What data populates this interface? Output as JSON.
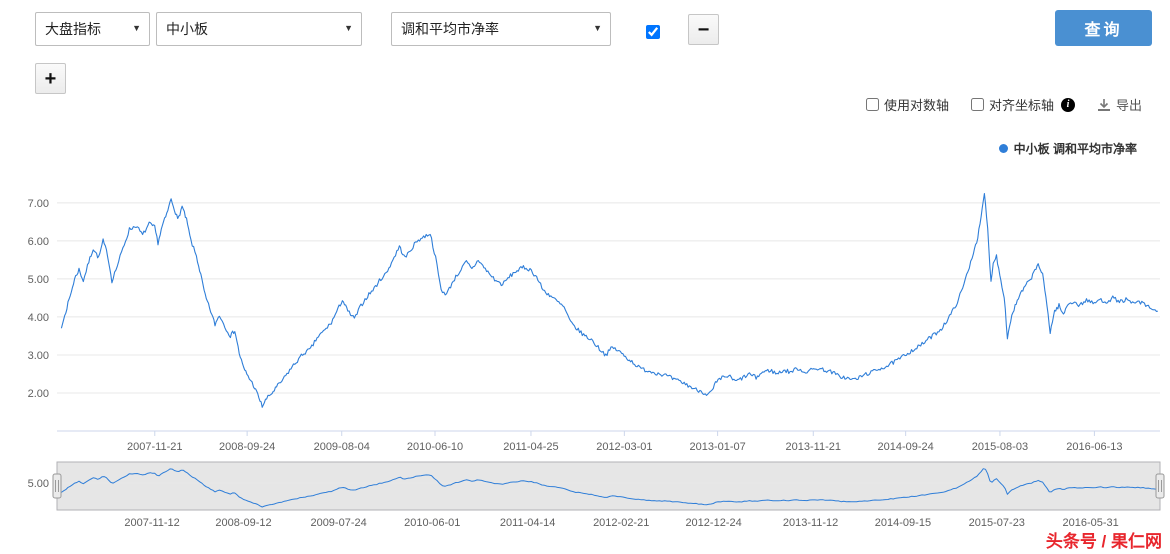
{
  "toolbar": {
    "market_select": {
      "value": "大盘指标"
    },
    "index_select": {
      "value": "中小板"
    },
    "metric_select": {
      "value": "调和平均市净率"
    },
    "series_checkbox_checked": true,
    "remove_label": "−",
    "add_label": "+",
    "query_label": "查询"
  },
  "options": {
    "log_axis_label": "使用对数轴",
    "align_axes_label": "对齐坐标轴",
    "info_glyph": "i",
    "export_label": "导出"
  },
  "legend": {
    "label": "中小板 调和平均市净率"
  },
  "watermark": "头条号 / 果仁网",
  "colors": {
    "series": "#2f7ed8",
    "accent": "#4a90d2",
    "watermark": "#e8262d",
    "axis_line": "#ccd6eb",
    "grid": "#e8e8e8",
    "tick_text": "#606060"
  },
  "chart_data": {
    "type": "line",
    "title": "",
    "legend_position": "top-right",
    "grid": true,
    "series": [
      {
        "name": "中小板 调和平均市净率",
        "color": "#2f7ed8",
        "points_year_value": [
          [
            2007.04,
            3.7
          ],
          [
            2007.08,
            4.15
          ],
          [
            2007.12,
            4.55
          ],
          [
            2007.16,
            5.0
          ],
          [
            2007.2,
            5.25
          ],
          [
            2007.24,
            4.95
          ],
          [
            2007.29,
            5.45
          ],
          [
            2007.33,
            5.8
          ],
          [
            2007.38,
            5.55
          ],
          [
            2007.42,
            6.0
          ],
          [
            2007.46,
            5.65
          ],
          [
            2007.5,
            4.95
          ],
          [
            2007.55,
            5.35
          ],
          [
            2007.6,
            5.8
          ],
          [
            2007.66,
            6.3
          ],
          [
            2007.72,
            6.4
          ],
          [
            2007.78,
            6.15
          ],
          [
            2007.84,
            6.45
          ],
          [
            2007.89,
            6.35
          ],
          [
            2007.92,
            5.95
          ],
          [
            2007.96,
            6.4
          ],
          [
            2008.0,
            6.7
          ],
          [
            2008.04,
            7.1
          ],
          [
            2008.07,
            6.85
          ],
          [
            2008.1,
            6.55
          ],
          [
            2008.14,
            6.9
          ],
          [
            2008.18,
            6.55
          ],
          [
            2008.22,
            6.0
          ],
          [
            2008.27,
            5.6
          ],
          [
            2008.31,
            5.1
          ],
          [
            2008.35,
            4.55
          ],
          [
            2008.4,
            4.15
          ],
          [
            2008.44,
            3.8
          ],
          [
            2008.48,
            4.05
          ],
          [
            2008.53,
            3.75
          ],
          [
            2008.58,
            3.5
          ],
          [
            2008.62,
            3.65
          ],
          [
            2008.66,
            3.05
          ],
          [
            2008.7,
            2.65
          ],
          [
            2008.74,
            2.45
          ],
          [
            2008.79,
            2.2
          ],
          [
            2008.83,
            1.95
          ],
          [
            2008.87,
            1.65
          ],
          [
            2008.91,
            1.85
          ],
          [
            2008.96,
            2.0
          ],
          [
            2009.0,
            2.15
          ],
          [
            2009.06,
            2.35
          ],
          [
            2009.12,
            2.6
          ],
          [
            2009.19,
            2.85
          ],
          [
            2009.25,
            3.05
          ],
          [
            2009.31,
            3.15
          ],
          [
            2009.37,
            3.45
          ],
          [
            2009.44,
            3.65
          ],
          [
            2009.5,
            3.85
          ],
          [
            2009.56,
            4.2
          ],
          [
            2009.6,
            4.45
          ],
          [
            2009.65,
            4.15
          ],
          [
            2009.71,
            3.95
          ],
          [
            2009.77,
            4.3
          ],
          [
            2009.83,
            4.55
          ],
          [
            2009.89,
            4.75
          ],
          [
            2009.95,
            5.0
          ],
          [
            2010.0,
            5.15
          ],
          [
            2010.06,
            5.5
          ],
          [
            2010.12,
            5.85
          ],
          [
            2010.17,
            5.55
          ],
          [
            2010.22,
            5.75
          ],
          [
            2010.28,
            6.0
          ],
          [
            2010.34,
            6.1
          ],
          [
            2010.4,
            6.2
          ],
          [
            2010.45,
            5.55
          ],
          [
            2010.5,
            4.7
          ],
          [
            2010.55,
            4.6
          ],
          [
            2010.61,
            4.95
          ],
          [
            2010.67,
            5.2
          ],
          [
            2010.73,
            5.45
          ],
          [
            2010.78,
            5.25
          ],
          [
            2010.84,
            5.5
          ],
          [
            2010.89,
            5.3
          ],
          [
            2010.95,
            5.1
          ],
          [
            2011.0,
            4.95
          ],
          [
            2011.06,
            4.85
          ],
          [
            2011.12,
            5.05
          ],
          [
            2011.18,
            5.2
          ],
          [
            2011.25,
            5.3
          ],
          [
            2011.31,
            5.25
          ],
          [
            2011.37,
            5.05
          ],
          [
            2011.43,
            4.7
          ],
          [
            2011.5,
            4.55
          ],
          [
            2011.56,
            4.4
          ],
          [
            2011.62,
            4.25
          ],
          [
            2011.68,
            3.85
          ],
          [
            2011.75,
            3.65
          ],
          [
            2011.81,
            3.5
          ],
          [
            2011.87,
            3.4
          ],
          [
            2011.93,
            3.2
          ],
          [
            2012.0,
            3.0
          ],
          [
            2012.06,
            3.2
          ],
          [
            2012.12,
            3.1
          ],
          [
            2012.18,
            2.95
          ],
          [
            2012.25,
            2.8
          ],
          [
            2012.31,
            2.65
          ],
          [
            2012.37,
            2.6
          ],
          [
            2012.43,
            2.55
          ],
          [
            2012.5,
            2.5
          ],
          [
            2012.56,
            2.45
          ],
          [
            2012.62,
            2.35
          ],
          [
            2012.68,
            2.3
          ],
          [
            2012.75,
            2.2
          ],
          [
            2012.81,
            2.1
          ],
          [
            2012.87,
            2.05
          ],
          [
            2012.93,
            1.95
          ],
          [
            2012.97,
            2.05
          ],
          [
            2013.0,
            2.25
          ],
          [
            2013.06,
            2.4
          ],
          [
            2013.12,
            2.45
          ],
          [
            2013.18,
            2.3
          ],
          [
            2013.25,
            2.4
          ],
          [
            2013.31,
            2.5
          ],
          [
            2013.37,
            2.4
          ],
          [
            2013.43,
            2.55
          ],
          [
            2013.5,
            2.6
          ],
          [
            2013.56,
            2.5
          ],
          [
            2013.62,
            2.6
          ],
          [
            2013.68,
            2.55
          ],
          [
            2013.75,
            2.65
          ],
          [
            2013.81,
            2.55
          ],
          [
            2013.87,
            2.6
          ],
          [
            2013.93,
            2.65
          ],
          [
            2014.0,
            2.6
          ],
          [
            2014.06,
            2.55
          ],
          [
            2014.12,
            2.45
          ],
          [
            2014.18,
            2.4
          ],
          [
            2014.25,
            2.35
          ],
          [
            2014.31,
            2.4
          ],
          [
            2014.37,
            2.5
          ],
          [
            2014.43,
            2.55
          ],
          [
            2014.5,
            2.65
          ],
          [
            2014.56,
            2.7
          ],
          [
            2014.62,
            2.8
          ],
          [
            2014.68,
            2.9
          ],
          [
            2014.75,
            3.05
          ],
          [
            2014.81,
            3.15
          ],
          [
            2014.87,
            3.25
          ],
          [
            2014.93,
            3.4
          ],
          [
            2015.0,
            3.55
          ],
          [
            2015.06,
            3.7
          ],
          [
            2015.12,
            3.95
          ],
          [
            2015.18,
            4.25
          ],
          [
            2015.24,
            4.65
          ],
          [
            2015.3,
            5.2
          ],
          [
            2015.35,
            5.7
          ],
          [
            2015.39,
            6.1
          ],
          [
            2015.42,
            6.6
          ],
          [
            2015.45,
            7.25
          ],
          [
            2015.48,
            6.3
          ],
          [
            2015.51,
            4.9
          ],
          [
            2015.53,
            5.45
          ],
          [
            2015.56,
            5.6
          ],
          [
            2015.6,
            4.95
          ],
          [
            2015.63,
            4.55
          ],
          [
            2015.66,
            3.45
          ],
          [
            2015.7,
            4.05
          ],
          [
            2015.74,
            4.35
          ],
          [
            2015.78,
            4.6
          ],
          [
            2015.82,
            4.8
          ],
          [
            2015.86,
            4.95
          ],
          [
            2015.9,
            5.15
          ],
          [
            2015.94,
            5.4
          ],
          [
            2015.98,
            5.1
          ],
          [
            2016.02,
            4.3
          ],
          [
            2016.05,
            3.6
          ],
          [
            2016.09,
            4.15
          ],
          [
            2016.13,
            4.3
          ],
          [
            2016.17,
            4.05
          ],
          [
            2016.21,
            4.35
          ],
          [
            2016.26,
            4.4
          ],
          [
            2016.32,
            4.3
          ],
          [
            2016.38,
            4.45
          ],
          [
            2016.44,
            4.35
          ],
          [
            2016.5,
            4.45
          ],
          [
            2016.56,
            4.4
          ],
          [
            2016.62,
            4.5
          ],
          [
            2016.68,
            4.4
          ],
          [
            2016.74,
            4.45
          ],
          [
            2016.8,
            4.35
          ],
          [
            2016.86,
            4.4
          ],
          [
            2016.92,
            4.3
          ],
          [
            2016.98,
            4.2
          ],
          [
            2017.03,
            4.15
          ]
        ]
      }
    ],
    "main_axis": {
      "ylim": [
        1.0,
        7.6
      ],
      "xlim_years": [
        2007.0,
        2017.05
      ],
      "yticks": [
        2,
        3,
        4,
        5,
        6,
        7
      ],
      "ytick_labels": [
        "2.00",
        "3.00",
        "4.00",
        "5.00",
        "6.00",
        "7.00"
      ],
      "xticks": [
        "2007-11-21",
        "2008-09-24",
        "2009-08-04",
        "2010-06-10",
        "2011-04-25",
        "2012-03-01",
        "2013-01-07",
        "2013-11-21",
        "2014-09-24",
        "2015-08-03",
        "2016-06-13"
      ]
    },
    "navigator": {
      "ylim": [
        1.2,
        8.0
      ],
      "yticks": [
        5
      ],
      "ytick_labels": [
        "5.00"
      ],
      "xticks": [
        "2007-11-12",
        "2008-09-12",
        "2009-07-24",
        "2010-06-01",
        "2011-04-14",
        "2012-02-21",
        "2012-12-24",
        "2013-11-12",
        "2014-09-15",
        "2015-07-23",
        "2016-05-31"
      ]
    }
  }
}
